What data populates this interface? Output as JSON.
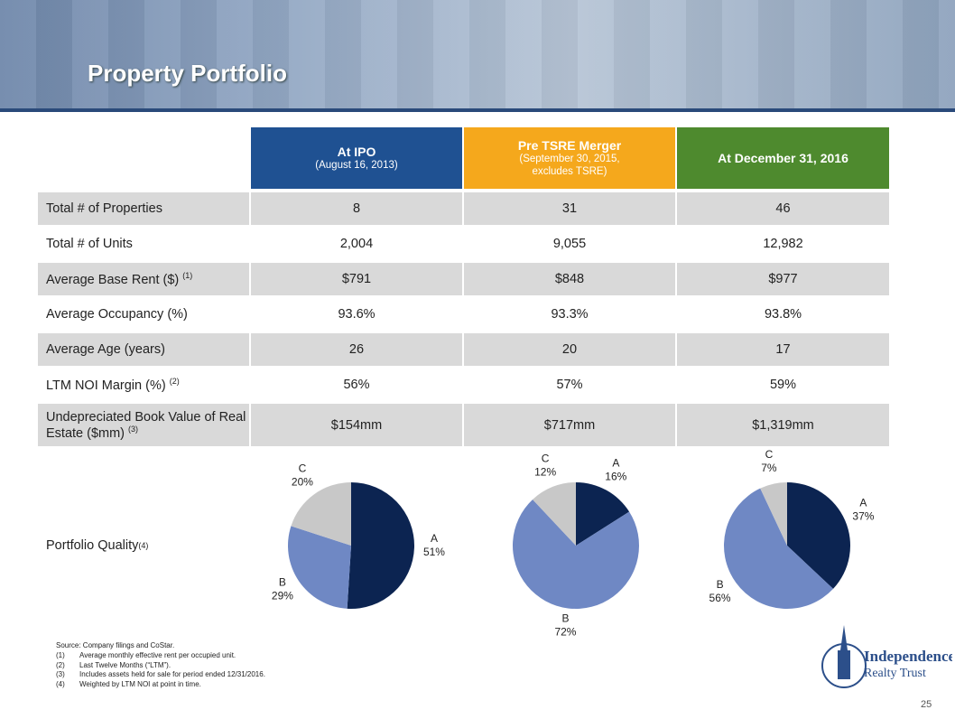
{
  "header": {
    "title": "Property Portfolio"
  },
  "table": {
    "columns": [
      {
        "title": "At IPO",
        "subtitle": "(August 16, 2013)",
        "color": "#1f5192"
      },
      {
        "title": "Pre TSRE Merger",
        "subtitle": "(September 30, 2015, excludes TSRE)",
        "color": "#f5a81c"
      },
      {
        "title": "At December 31, 2016",
        "color": "#4e8a2e"
      }
    ],
    "rows": [
      {
        "label": "Total # of Properties",
        "values": [
          "8",
          "31",
          "46"
        ]
      },
      {
        "label": "Total # of Units",
        "values": [
          "2,004",
          "9,055",
          "12,982"
        ]
      },
      {
        "label": "Average Base Rent ($)",
        "note": "(1)",
        "values": [
          "$791",
          "$848",
          "$977"
        ]
      },
      {
        "label": "Average Occupancy (%)",
        "values": [
          "93.6%",
          "93.3%",
          "93.8%"
        ]
      },
      {
        "label": "Average Age (years)",
        "values": [
          "26",
          "20",
          "17"
        ]
      },
      {
        "label": "LTM NOI Margin (%)",
        "note": "(2)",
        "values": [
          "56%",
          "57%",
          "59%"
        ]
      },
      {
        "label": "Undepreciated Book Value of Real Estate ($mm)",
        "note": "(3)",
        "values": [
          "$154mm",
          "$717mm",
          "$1,319mm"
        ]
      }
    ]
  },
  "portfolio_quality": {
    "label": "Portfolio Quality",
    "note": "(4)",
    "charts": [
      {
        "type": "pie",
        "categories": [
          "A",
          "B",
          "C"
        ],
        "values": [
          51,
          29,
          20
        ],
        "value_labels": [
          "51%",
          "29%",
          "20%"
        ],
        "colors": [
          "#0c2451",
          "#6f88c4",
          "#c8c8c8"
        ]
      },
      {
        "type": "pie",
        "categories": [
          "A",
          "B",
          "C"
        ],
        "values": [
          16,
          72,
          12
        ],
        "value_labels": [
          "16%",
          "72%",
          "12%"
        ],
        "colors": [
          "#0c2451",
          "#6f88c4",
          "#c8c8c8"
        ]
      },
      {
        "type": "pie",
        "categories": [
          "A",
          "B",
          "C"
        ],
        "values": [
          37,
          56,
          7
        ],
        "value_labels": [
          "37%",
          "56%",
          "7%"
        ],
        "colors": [
          "#0c2451",
          "#6f88c4",
          "#c8c8c8"
        ]
      }
    ]
  },
  "footnotes": {
    "source": "Source: Company filings and CoStar.",
    "items": [
      {
        "num": "(1)",
        "text": "Average monthly effective rent per occupied unit."
      },
      {
        "num": "(2)",
        "text": "Last Twelve Months (“LTM”)."
      },
      {
        "num": "(3)",
        "text": "Includes assets held for sale for period ended 12/31/2016."
      },
      {
        "num": "(4)",
        "text": "Weighted by LTM NOI at point in time."
      }
    ]
  },
  "logo": {
    "line1": "Independence",
    "line2": "Realty Trust"
  },
  "page_number": "25"
}
